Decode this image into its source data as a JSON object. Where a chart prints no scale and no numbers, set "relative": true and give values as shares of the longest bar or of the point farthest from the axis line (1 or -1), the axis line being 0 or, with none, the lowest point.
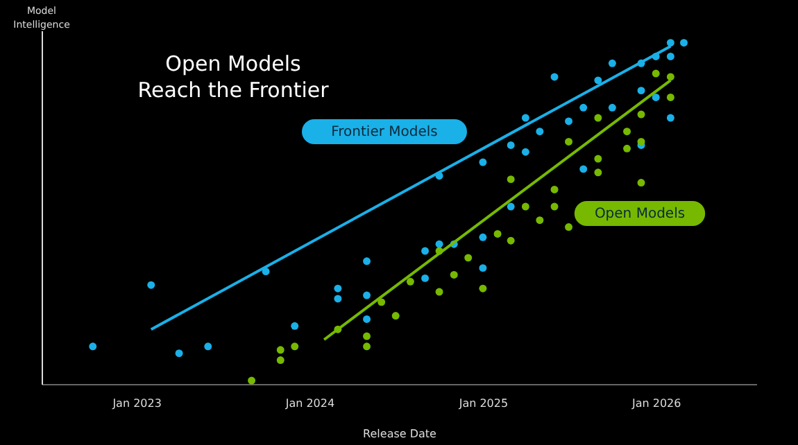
{
  "chart_data": {
    "type": "scatter",
    "title": "Open Models\nReach the Frontier",
    "xlabel": "Release Date",
    "ylabel": "Model Intelligence",
    "relative": true,
    "legend": false,
    "grid": false,
    "xlim": [
      "2022-06-15",
      "2026-08-01"
    ],
    "xticks": [
      {
        "value": "2023-01-01",
        "label": "Jan 2023"
      },
      {
        "value": "2024-01-01",
        "label": "Jan 2024"
      },
      {
        "value": "2025-01-01",
        "label": "Jan 2025"
      },
      {
        "value": "2026-01-01",
        "label": "Jan 2026"
      }
    ],
    "series": [
      {
        "name": "Frontier Models",
        "color": "#1ab0e8",
        "marker": "circle",
        "x": [
          "2022-10",
          "2023-02",
          "2023-04",
          "2023-06",
          "2023-10",
          "2023-12",
          "2024-03",
          "2024-03",
          "2024-05",
          "2024-05",
          "2024-05",
          "2024-09",
          "2024-09",
          "2024-10",
          "2024-10",
          "2024-11",
          "2025-01",
          "2025-01",
          "2025-01",
          "2025-03",
          "2025-03",
          "2025-04",
          "2025-04",
          "2025-05",
          "2025-06",
          "2025-07",
          "2025-08",
          "2025-08",
          "2025-09",
          "2025-10",
          "2025-10",
          "2025-12",
          "2025-12",
          "2025-12",
          "2026-01",
          "2026-01",
          "2026-02",
          "2026-02",
          "2026-02",
          "2026-03"
        ],
        "values": [
          0.11,
          0.29,
          0.09,
          0.11,
          0.33,
          0.17,
          0.28,
          0.25,
          0.36,
          0.26,
          0.19,
          0.39,
          0.31,
          0.41,
          0.61,
          0.41,
          0.65,
          0.43,
          0.34,
          0.52,
          0.7,
          0.78,
          0.68,
          0.74,
          0.9,
          0.77,
          0.81,
          0.63,
          0.89,
          0.94,
          0.81,
          0.94,
          0.86,
          0.7,
          0.96,
          0.84,
          1.0,
          0.96,
          0.78,
          1.0
        ]
      },
      {
        "name": "Open Models",
        "color": "#76b900",
        "marker": "circle",
        "x": [
          "2023-09",
          "2023-11",
          "2023-11",
          "2023-12",
          "2024-03",
          "2024-05",
          "2024-05",
          "2024-06",
          "2024-07",
          "2024-08",
          "2024-10",
          "2024-10",
          "2024-11",
          "2024-12",
          "2025-01",
          "2025-02",
          "2025-03",
          "2025-03",
          "2025-04",
          "2025-05",
          "2025-06",
          "2025-06",
          "2025-07",
          "2025-07",
          "2025-09",
          "2025-09",
          "2025-09",
          "2025-11",
          "2025-11",
          "2025-12",
          "2025-12",
          "2025-12",
          "2026-01",
          "2026-02",
          "2026-02"
        ],
        "values": [
          0.01,
          0.07,
          0.1,
          0.11,
          0.16,
          0.14,
          0.11,
          0.24,
          0.2,
          0.3,
          0.27,
          0.39,
          0.32,
          0.37,
          0.28,
          0.44,
          0.42,
          0.6,
          0.52,
          0.48,
          0.52,
          0.57,
          0.71,
          0.46,
          0.78,
          0.66,
          0.62,
          0.74,
          0.69,
          0.79,
          0.71,
          0.59,
          0.91,
          0.9,
          0.84
        ]
      },
      {
        "type": "line",
        "color": "#1ab0e8",
        "marker": "none",
        "x": [
          "2023-02",
          "2026-02"
        ],
        "values": [
          0.16,
          0.99
        ]
      },
      {
        "type": "line",
        "color": "#76b900",
        "marker": "none",
        "x": [
          "2024-02",
          "2026-02"
        ],
        "values": [
          0.13,
          0.89
        ]
      }
    ]
  }
}
